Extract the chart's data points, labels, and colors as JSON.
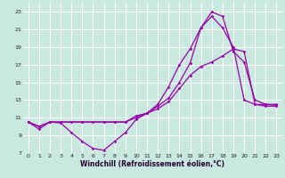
{
  "xlabel": "Windchill (Refroidissement éolien,°C)",
  "bg_color": "#c8e8e0",
  "line_color": "#9900aa",
  "grid_color": "#b0d0cc",
  "xlim": [
    -0.5,
    23.5
  ],
  "ylim": [
    7,
    24
  ],
  "xticks": [
    0,
    1,
    2,
    3,
    4,
    5,
    6,
    7,
    8,
    9,
    10,
    11,
    12,
    13,
    14,
    15,
    16,
    17,
    18,
    19,
    20,
    21,
    22,
    23
  ],
  "yticks": [
    7,
    9,
    11,
    13,
    15,
    17,
    19,
    21,
    23
  ],
  "line1_x": [
    0,
    1,
    2,
    3,
    4,
    5,
    6,
    7,
    8,
    9,
    10,
    11,
    12,
    13,
    14,
    15,
    16,
    17,
    18,
    19,
    20,
    21,
    22,
    23
  ],
  "line1_y": [
    10.5,
    9.7,
    10.5,
    10.4,
    9.3,
    8.3,
    7.5,
    7.3,
    8.3,
    9.3,
    10.8,
    11.5,
    12.5,
    14.5,
    17.0,
    18.8,
    21.2,
    23.0,
    22.5,
    18.5,
    17.3,
    13.0,
    12.5,
    12.4
  ],
  "line2_x": [
    0,
    1,
    2,
    3,
    4,
    5,
    6,
    7,
    8,
    9,
    10,
    11,
    12,
    13,
    14,
    15,
    16,
    17,
    18,
    19,
    20,
    21,
    22,
    23
  ],
  "line2_y": [
    10.5,
    10.0,
    10.5,
    10.5,
    10.5,
    10.5,
    10.5,
    10.5,
    10.5,
    10.5,
    11.2,
    11.5,
    12.3,
    13.2,
    15.0,
    17.2,
    21.2,
    22.5,
    21.2,
    19.0,
    13.0,
    12.5,
    12.5,
    12.5
  ],
  "line3_x": [
    0,
    1,
    2,
    3,
    4,
    5,
    6,
    7,
    8,
    9,
    10,
    11,
    12,
    13,
    14,
    15,
    16,
    17,
    18,
    19,
    20,
    21,
    22,
    23
  ],
  "line3_y": [
    10.5,
    10.0,
    10.5,
    10.5,
    10.5,
    10.5,
    10.5,
    10.5,
    10.5,
    10.5,
    11.0,
    11.5,
    12.0,
    12.8,
    14.3,
    15.8,
    16.8,
    17.3,
    18.0,
    18.8,
    18.5,
    12.5,
    12.3,
    12.3
  ]
}
